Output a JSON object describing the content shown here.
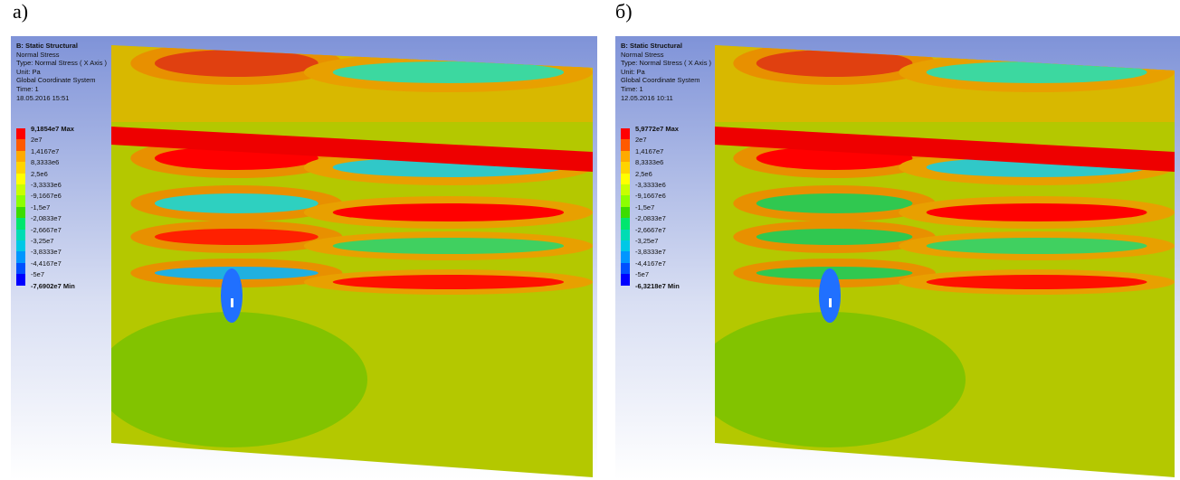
{
  "panels": [
    {
      "label": "а)",
      "info": {
        "title": "B: Static Structural",
        "lines": [
          "Normal Stress",
          "Type: Normal Stress ( X Axis )",
          "Unit: Pa",
          "Global Coordinate System",
          "Time: 1",
          "18.05.2016 15:51"
        ]
      },
      "legend": [
        "9,1854e7 Max",
        "2e7",
        "1,4167e7",
        "8,3333e6",
        "2,5e6",
        "-3,3333e6",
        "-9,1667e6",
        "-1,5e7",
        "-2,0833e7",
        "-2,6667e7",
        "-3,25e7",
        "-3,8333e7",
        "-4,4167e7",
        "-5e7",
        "-7,6902e7 Min"
      ]
    },
    {
      "label": "б)",
      "info": {
        "title": "B: Static Structural",
        "lines": [
          "Normal Stress",
          "Type: Normal Stress ( X Axis )",
          "Unit: Pa",
          "Global Coordinate System",
          "Time: 1",
          "12.05.2016 10:11"
        ]
      },
      "legend": [
        "5,9772e7 Max",
        "2e7",
        "1,4167e7",
        "8,3333e6",
        "2,5e6",
        "-3,3333e6",
        "-9,1667e6",
        "-1,5e7",
        "-2,0833e7",
        "-2,6667e7",
        "-3,25e7",
        "-3,8333e7",
        "-4,4167e7",
        "-5e7",
        "-6,3218e7 Min"
      ]
    }
  ]
}
